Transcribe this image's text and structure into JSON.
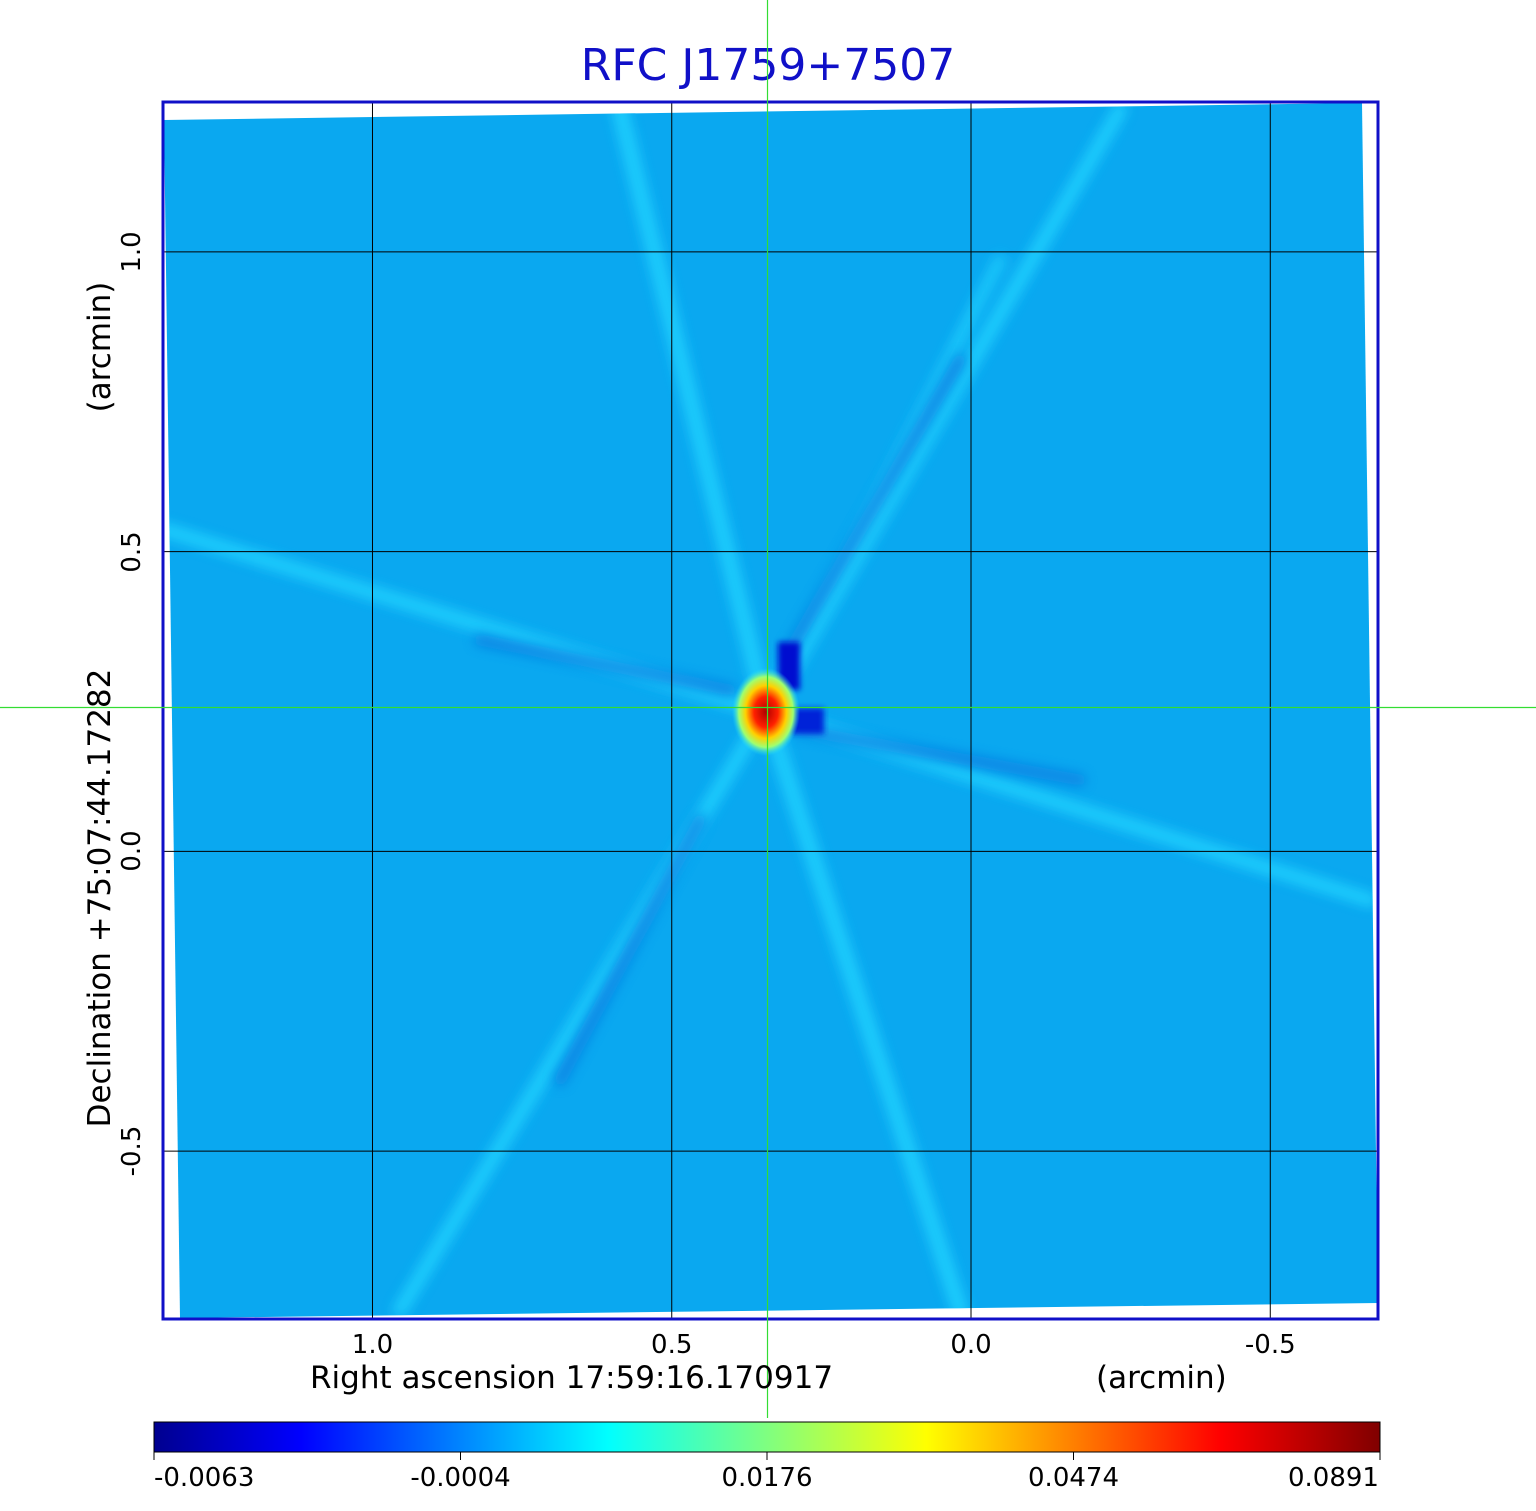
{
  "chart_data": {
    "type": "heatmap",
    "title": "RFC J1759+7507",
    "xlabel": "Right ascension  17:59:16.170917",
    "xunit": "(arcmin)",
    "ylabel": "Declination  +75:07:44.17282",
    "yunit": "(arcmin)",
    "xlim": [
      1.35,
      -0.68
    ],
    "ylim": [
      -0.78,
      1.25
    ],
    "x_ticks": [
      "1.0",
      "0.5",
      "0.0",
      "-0.5"
    ],
    "x_tick_values": [
      1.0,
      0.5,
      0.0,
      -0.5
    ],
    "y_ticks": [
      "1.0",
      "0.5",
      "0.0",
      "-0.5"
    ],
    "y_tick_values": [
      1.0,
      0.5,
      0.0,
      -0.5
    ],
    "grid": true,
    "crosshair": {
      "x": 0.34,
      "y": 0.24
    },
    "source_peak": {
      "x": 0.34,
      "y": 0.24,
      "value": 0.0891
    },
    "negative_features": [
      {
        "x": 0.3,
        "y": 0.32,
        "value": -0.0063
      },
      {
        "x": 0.28,
        "y": 0.21,
        "value": -0.0063
      }
    ],
    "colorbar": {
      "colormap": "jet",
      "tick_labels": [
        "-0.0063",
        "-0.0004",
        "0.0176",
        "0.0474",
        "0.0891"
      ],
      "tick_values": [
        -0.0063,
        -0.0004,
        0.0176,
        0.0474,
        0.0891
      ]
    },
    "colors": {
      "title": "#1010c8",
      "frame": "#1010c8",
      "background_field": "#0aa8f0",
      "crosshair": "#33dd33",
      "grid": "#000000"
    }
  }
}
